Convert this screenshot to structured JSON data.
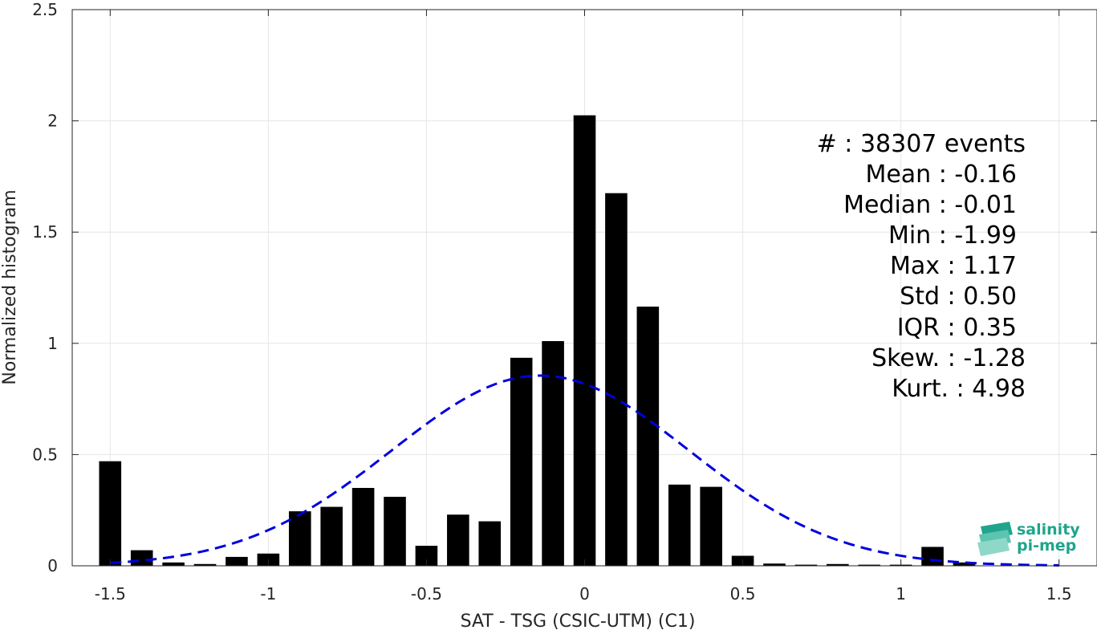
{
  "chart_data": {
    "type": "bar",
    "xlabel": "SAT - TSG (CSIC-UTM) (C1)",
    "ylabel": "Normalized histogram",
    "xlim": [
      -1.62,
      1.62
    ],
    "ylim": [
      0,
      2.5
    ],
    "xticks": [
      -1.5,
      -1,
      -0.5,
      0,
      0.5,
      1,
      1.5
    ],
    "xtick_labels": [
      "-1.5",
      "-1",
      "-0.5",
      "0",
      "0.5",
      "1",
      "1.5"
    ],
    "yticks": [
      0,
      0.5,
      1,
      1.5,
      2,
      2.5
    ],
    "ytick_labels": [
      "0",
      "0.5",
      "1",
      "1.5",
      "2",
      "2.5"
    ],
    "grid": true,
    "bar_width": 0.07,
    "bins": [
      -1.5,
      -1.4,
      -1.3,
      -1.2,
      -1.1,
      -1.0,
      -0.9,
      -0.8,
      -0.7,
      -0.6,
      -0.5,
      -0.4,
      -0.3,
      -0.2,
      -0.1,
      0.0,
      0.1,
      0.2,
      0.3,
      0.4,
      0.5,
      0.6,
      0.7,
      0.8,
      0.9,
      1.0,
      1.1,
      1.2
    ],
    "values": [
      0.47,
      0.07,
      0.015,
      0.008,
      0.04,
      0.055,
      0.245,
      0.265,
      0.35,
      0.31,
      0.09,
      0.23,
      0.2,
      0.935,
      1.01,
      2.025,
      1.675,
      1.165,
      0.365,
      0.355,
      0.045,
      0.01,
      0.005,
      0.008,
      0.005,
      0.005,
      0.085,
      0.015
    ],
    "bar_color": "#000000",
    "fit_curve": {
      "style": "dashed",
      "color": "#0000dd",
      "distribution": "normal",
      "mean": -0.14,
      "sigma": 0.47,
      "peak": 0.855,
      "x_range": [
        -1.5,
        1.5
      ]
    }
  },
  "stats": {
    "count": "#  : 38307 events",
    "mean": "Mean : -0.16",
    "median": "Median : -0.01",
    "min": "Min : -1.99",
    "max": "Max : 1.17",
    "std": "Std : 0.50",
    "iqr": "IQR : 0.35",
    "skew": "Skew. : -1.28",
    "kurt": "Kurt. : 4.98"
  },
  "logo": {
    "line1": "salinity",
    "line2": "pi-mep",
    "color": "#1fa58c"
  }
}
